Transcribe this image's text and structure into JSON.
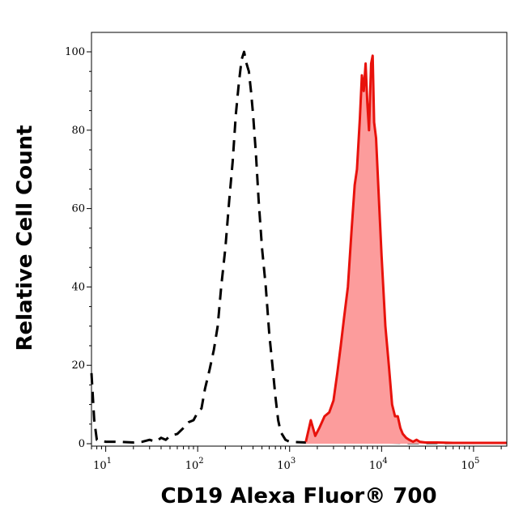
{
  "chart_data": {
    "type": "area",
    "title": "",
    "xlabel": "CD19 Alexa Fluor® 700",
    "ylabel": "Relative Cell Count",
    "x_scale": "log",
    "xlim": [
      7,
      230000
    ],
    "ylim": [
      0,
      100
    ],
    "y_ticks": [
      0,
      20,
      40,
      60,
      80,
      100
    ],
    "x_tick_labels": [
      {
        "value": 10,
        "base": "10",
        "exp": "1"
      },
      {
        "value": 100,
        "base": "10",
        "exp": "2"
      },
      {
        "value": 1000,
        "base": "10",
        "exp": "3"
      },
      {
        "value": 10000,
        "base": "10",
        "exp": "4"
      },
      {
        "value": 100000,
        "base": "10",
        "exp": "5"
      }
    ],
    "grid": false,
    "series": [
      {
        "style": "dashed",
        "color": "#000000",
        "fill": "none",
        "points": [
          [
            7,
            18
          ],
          [
            7.5,
            6
          ],
          [
            8,
            1
          ],
          [
            10,
            0.5
          ],
          [
            14,
            0.5
          ],
          [
            20,
            0.3
          ],
          [
            25,
            0.5
          ],
          [
            30,
            1
          ],
          [
            35,
            0.5
          ],
          [
            40,
            1.5
          ],
          [
            45,
            1
          ],
          [
            50,
            2
          ],
          [
            60,
            2.5
          ],
          [
            70,
            4
          ],
          [
            80,
            5.5
          ],
          [
            90,
            6
          ],
          [
            100,
            8
          ],
          [
            110,
            9
          ],
          [
            120,
            14
          ],
          [
            135,
            19
          ],
          [
            150,
            24
          ],
          [
            165,
            30
          ],
          [
            180,
            40
          ],
          [
            200,
            50
          ],
          [
            220,
            62
          ],
          [
            240,
            72
          ],
          [
            260,
            84
          ],
          [
            280,
            92
          ],
          [
            300,
            98
          ],
          [
            320,
            100
          ],
          [
            340,
            97
          ],
          [
            360,
            95
          ],
          [
            380,
            90
          ],
          [
            400,
            84
          ],
          [
            430,
            74
          ],
          [
            460,
            62
          ],
          [
            500,
            50
          ],
          [
            550,
            40
          ],
          [
            600,
            28
          ],
          [
            650,
            20
          ],
          [
            700,
            12
          ],
          [
            750,
            6
          ],
          [
            800,
            3
          ],
          [
            900,
            1
          ],
          [
            1000,
            0.5
          ],
          [
            1500,
            0.3
          ],
          [
            2000,
            0.3
          ],
          [
            3000,
            0.5
          ],
          [
            4000,
            0.3
          ],
          [
            6000,
            0.5
          ],
          [
            8000,
            0.3
          ],
          [
            12000,
            0.3
          ],
          [
            20000,
            0.2
          ],
          [
            230000,
            0.2
          ]
        ]
      },
      {
        "style": "solid",
        "color": "#e8120c",
        "fill": "#fc9c9c",
        "points": [
          [
            1500,
            0.5
          ],
          [
            1700,
            6
          ],
          [
            1900,
            2
          ],
          [
            2100,
            4
          ],
          [
            2400,
            7
          ],
          [
            2700,
            8
          ],
          [
            3000,
            11
          ],
          [
            3300,
            18
          ],
          [
            3600,
            25
          ],
          [
            3900,
            32
          ],
          [
            4300,
            40
          ],
          [
            4700,
            54
          ],
          [
            5100,
            66
          ],
          [
            5400,
            70
          ],
          [
            5800,
            83
          ],
          [
            6100,
            94
          ],
          [
            6400,
            90
          ],
          [
            6700,
            97
          ],
          [
            7000,
            87
          ],
          [
            7300,
            80
          ],
          [
            7700,
            97
          ],
          [
            8000,
            99
          ],
          [
            8300,
            82
          ],
          [
            8700,
            78
          ],
          [
            9200,
            66
          ],
          [
            10000,
            48
          ],
          [
            11000,
            30
          ],
          [
            12000,
            20
          ],
          [
            13000,
            10
          ],
          [
            14000,
            7
          ],
          [
            15000,
            7
          ],
          [
            16000,
            4
          ],
          [
            17000,
            2.5
          ],
          [
            18500,
            1.5
          ],
          [
            20000,
            1
          ],
          [
            22000,
            0.5
          ],
          [
            24000,
            1
          ],
          [
            26000,
            0.5
          ],
          [
            30000,
            0.3
          ],
          [
            40000,
            0.3
          ],
          [
            60000,
            0.2
          ],
          [
            100000,
            0.2
          ],
          [
            230000,
            0.2
          ]
        ]
      }
    ]
  }
}
